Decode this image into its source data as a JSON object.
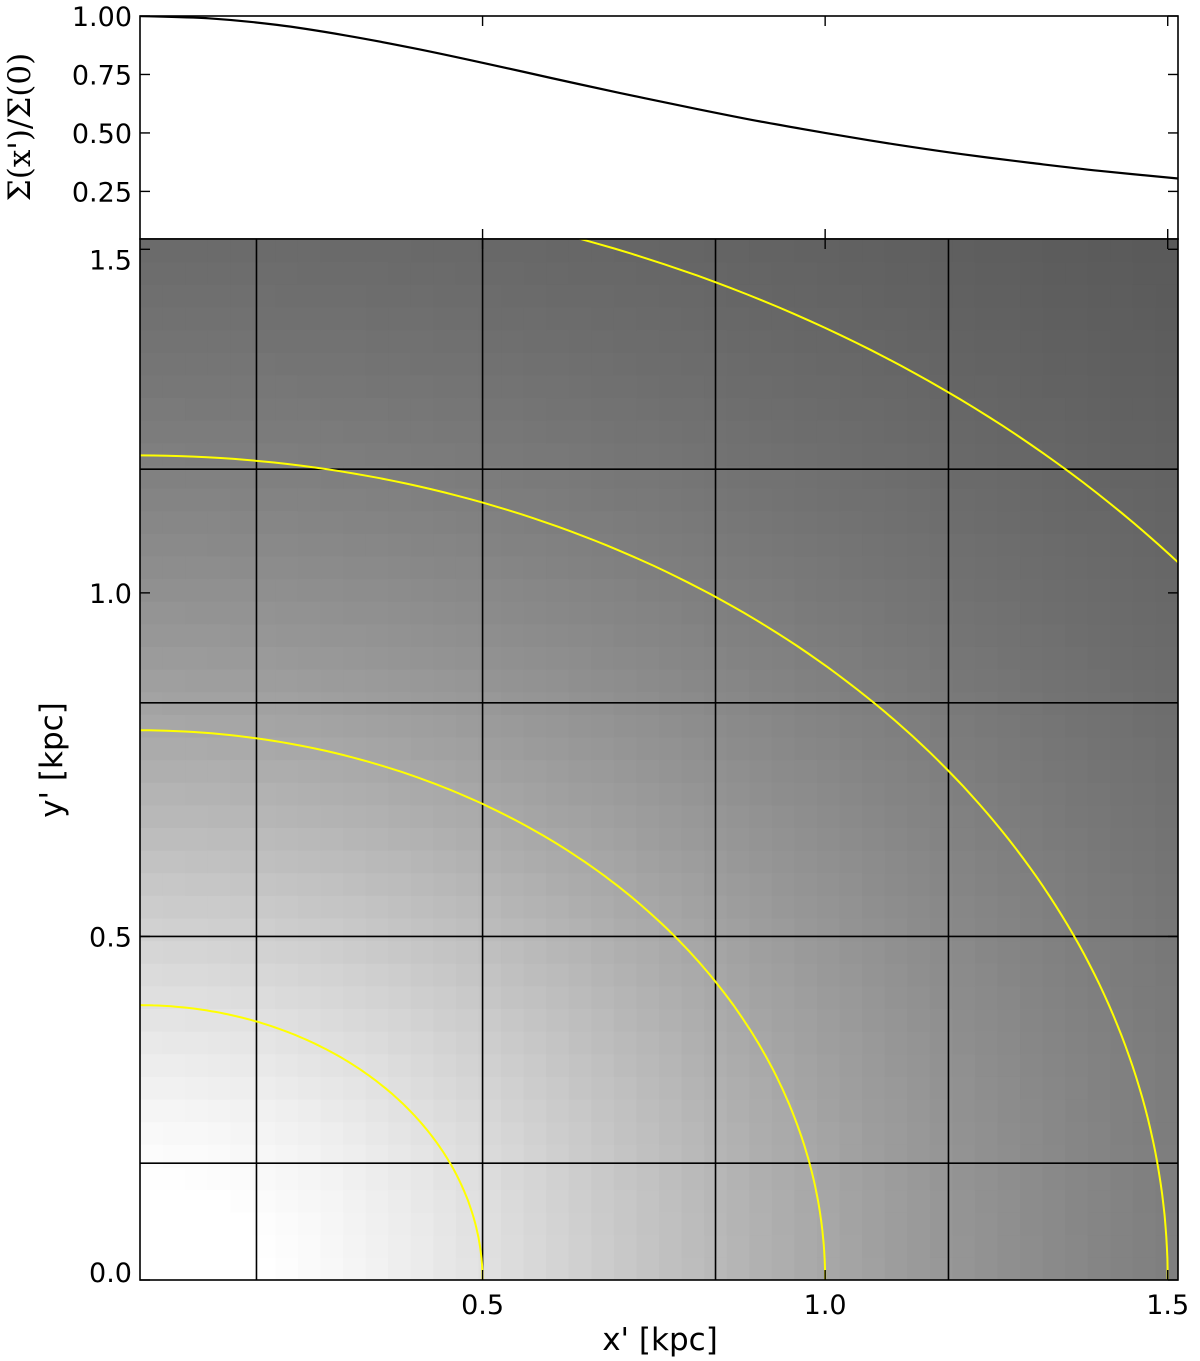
{
  "chart_data": [
    {
      "type": "line",
      "panel": "profile",
      "ylabel": "Σ(x')/Σ(0)",
      "ylim": [
        0.0465,
        1.0
      ],
      "xlim": [
        0.0,
        1.515
      ],
      "yticks": [
        1.0,
        0.75,
        0.5,
        0.25
      ],
      "ytick_labels": [
        "1.00",
        "0.75",
        "0.50",
        "0.25"
      ],
      "xticks": [
        0.5,
        1.0,
        1.5
      ],
      "series": [
        {
          "x": [
            0,
            0.1,
            0.2,
            0.3,
            0.4,
            0.5,
            0.6,
            0.7,
            0.8,
            0.9,
            1.0,
            1.1,
            1.2,
            1.3,
            1.4,
            1.515
          ],
          "y": [
            1.0,
            0.99,
            0.962,
            0.917,
            0.862,
            0.8,
            0.735,
            0.671,
            0.61,
            0.552,
            0.5,
            0.452,
            0.409,
            0.372,
            0.338,
            0.305
          ]
        }
      ]
    },
    {
      "type": "heatmap",
      "panel": "map",
      "xlabel": "x' [kpc]",
      "ylabel": "y' [kpc]",
      "xlim": [
        0.0,
        1.515
      ],
      "ylim": [
        0.0,
        1.515
      ],
      "xticks": [
        0.5,
        1.0,
        1.5
      ],
      "xtick_labels": [
        "0.5",
        "1.0",
        "1.5"
      ],
      "yticks": [
        0.0,
        0.5,
        1.0,
        1.5
      ],
      "ytick_labels": [
        "0.0",
        "0.5",
        "1.0",
        "1.5"
      ],
      "colormap": "gray",
      "contour_color": "#ffff00",
      "contours": [
        {
          "semi_x": 0.5,
          "semi_y": 0.4
        },
        {
          "semi_x": 1.0,
          "semi_y": 0.8
        },
        {
          "semi_x": 1.5,
          "semi_y": 1.2
        },
        {
          "semi_x": 2.0,
          "semi_y": 1.6
        }
      ],
      "grid_x": [
        0.17,
        0.5,
        0.84,
        1.18
      ],
      "grid_y": [
        0.17,
        0.5,
        0.84,
        1.18
      ]
    }
  ]
}
